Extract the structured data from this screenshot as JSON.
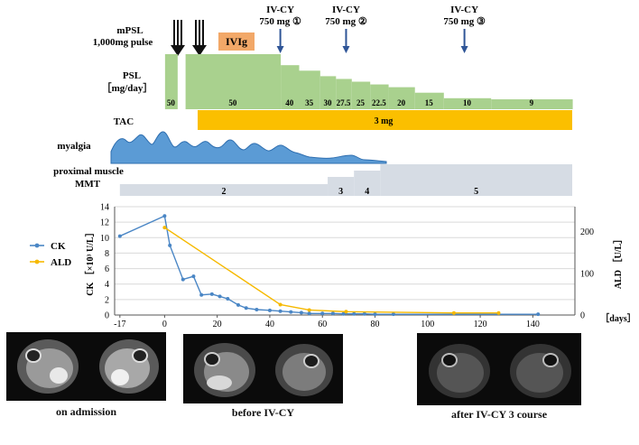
{
  "treatment": {
    "mpsl_label_line1": "mPSL",
    "mpsl_label_line2": "1,000mg pulse",
    "ivig_label": "IVIg",
    "ivcy": [
      {
        "line1": "IV-CY",
        "line2": "750 mg ①",
        "day": 44
      },
      {
        "line1": "IV-CY",
        "line2": "750 mg ②",
        "day": 69
      },
      {
        "line1": "IV-CY",
        "line2": "750 mg ③",
        "day": 114
      }
    ],
    "psl_label_line1": "PSL",
    "psl_label_line2": "［mg/day］",
    "psl_doses": [
      {
        "label": "50",
        "from": 0,
        "to": 4.8,
        "dose": 50
      },
      {
        "label": "50",
        "from": 7.8,
        "to": 44,
        "dose": 50
      },
      {
        "label": "40",
        "from": 44,
        "to": 51,
        "dose": 40
      },
      {
        "label": "35",
        "from": 51,
        "to": 59,
        "dose": 35
      },
      {
        "label": "30",
        "from": 59,
        "to": 65,
        "dose": 30
      },
      {
        "label": "27.5",
        "from": 65,
        "to": 71,
        "dose": 27.5
      },
      {
        "label": "25",
        "from": 71,
        "to": 78,
        "dose": 25
      },
      {
        "label": "22.5",
        "from": 78,
        "to": 85,
        "dose": 22.5
      },
      {
        "label": "20",
        "from": 85,
        "to": 95,
        "dose": 20
      },
      {
        "label": "15",
        "from": 95,
        "to": 106,
        "dose": 15
      },
      {
        "label": "10",
        "from": 106,
        "to": 124,
        "dose": 10
      },
      {
        "label": "9",
        "from": 124,
        "to": 155,
        "dose": 9
      }
    ],
    "tac_label": "TAC",
    "tac_dose": "3 mg",
    "myalgia_label": "myalgia",
    "mmt_label_line1": "proximal muscle",
    "mmt_label_line2": "MMT",
    "mmt": [
      {
        "label": "2",
        "from": -17,
        "to": 62
      },
      {
        "label": "3",
        "from": 62,
        "to": 72
      },
      {
        "label": "4",
        "from": 72,
        "to": 82
      },
      {
        "label": "5",
        "from": 82,
        "to": 155
      }
    ]
  },
  "chart_data": {
    "type": "line",
    "xlabel": "［days］",
    "ylabel_left": "CK ［×10³ U/L］",
    "ylabel_right": "ALD ［U/L］",
    "xlim": [
      -19,
      156
    ],
    "x_ticks": [
      -17,
      0,
      20,
      40,
      60,
      80,
      100,
      120,
      140
    ],
    "y_left_lim": [
      0,
      14
    ],
    "y_left_ticks": [
      0,
      2,
      4,
      6,
      8,
      10,
      12,
      14
    ],
    "y_right_lim": [
      0,
      260
    ],
    "y_right_ticks": [
      0,
      100,
      200
    ],
    "grid": true,
    "legend_position": "left",
    "series": [
      {
        "name": "CK",
        "color": "#4a86c5",
        "axis": "left",
        "x": [
          -17,
          0,
          2,
          7,
          11,
          14,
          18,
          21,
          24,
          28,
          31,
          35,
          40,
          44,
          48,
          52,
          55,
          60,
          64,
          68,
          72,
          76,
          80,
          87,
          142
        ],
        "y": [
          10.2,
          12.8,
          9.0,
          4.6,
          5.0,
          2.6,
          2.7,
          2.4,
          2.1,
          1.3,
          0.9,
          0.7,
          0.6,
          0.5,
          0.4,
          0.3,
          0.2,
          0.2,
          0.2,
          0.15,
          0.15,
          0.15,
          0.1,
          0.1,
          0.1
        ]
      },
      {
        "name": "ALD",
        "color": "#f6b900",
        "axis": "right",
        "x": [
          0,
          44,
          55,
          69,
          110,
          127
        ],
        "y": [
          210,
          25,
          12,
          8,
          5,
          5
        ]
      }
    ]
  },
  "mri_captions": {
    "admission": "on admission",
    "before": "before IV-CY",
    "after": "after IV-CY 3 course"
  }
}
